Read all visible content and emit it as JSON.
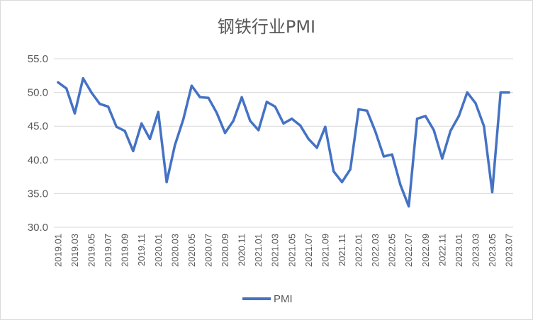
{
  "chart_data": {
    "type": "line",
    "title": "钢铁行业PMI",
    "xlabel": "",
    "ylabel": "",
    "ylim": [
      30.0,
      55.0
    ],
    "yticks": [
      "30.0",
      "35.0",
      "40.0",
      "45.0",
      "50.0",
      "55.0"
    ],
    "grid": true,
    "legend_position": "bottom",
    "x_tick_labels": [
      "2019.01",
      "2019.03",
      "2019.05",
      "2019.07",
      "2019.09",
      "2019.11",
      "2020.01",
      "2020.03",
      "2020.05",
      "2020.07",
      "2020.09",
      "2020.11",
      "2021.01",
      "2021.03",
      "2021.05",
      "2021.07",
      "2021.09",
      "2021.11",
      "2022.01",
      "2022.03",
      "2022.05",
      "2022.07",
      "2022.09",
      "2022.11",
      "2023.01",
      "2023.03",
      "2023.05",
      "2023.07"
    ],
    "x": [
      "2019.01",
      "2019.02",
      "2019.03",
      "2019.04",
      "2019.05",
      "2019.06",
      "2019.07",
      "2019.08",
      "2019.09",
      "2019.10",
      "2019.11",
      "2019.12",
      "2020.01",
      "2020.02",
      "2020.03",
      "2020.04",
      "2020.05",
      "2020.06",
      "2020.07",
      "2020.08",
      "2020.09",
      "2020.10",
      "2020.11",
      "2020.12",
      "2021.01",
      "2021.02",
      "2021.03",
      "2021.04",
      "2021.05",
      "2021.06",
      "2021.07",
      "2021.08",
      "2021.09",
      "2021.10",
      "2021.11",
      "2021.12",
      "2022.01",
      "2022.02",
      "2022.03",
      "2022.04",
      "2022.05",
      "2022.06",
      "2022.07",
      "2022.08",
      "2022.09",
      "2022.10",
      "2022.11",
      "2022.12",
      "2023.01",
      "2023.02",
      "2023.03",
      "2023.04",
      "2023.05",
      "2023.06",
      "2023.07"
    ],
    "series": [
      {
        "name": "PMI",
        "color": "#4472c4",
        "values": [
          51.5,
          50.6,
          46.9,
          52.1,
          50.0,
          48.3,
          47.9,
          44.9,
          44.3,
          41.3,
          45.4,
          43.1,
          47.1,
          36.7,
          42.2,
          46.0,
          51.0,
          49.3,
          49.2,
          47.0,
          44.0,
          45.8,
          49.3,
          45.8,
          44.4,
          48.6,
          47.9,
          45.4,
          46.1,
          45.1,
          43.1,
          41.8,
          44.9,
          38.3,
          36.7,
          38.6,
          47.5,
          47.3,
          44.2,
          40.5,
          40.8,
          36.3,
          33.1,
          46.1,
          46.5,
          44.4,
          40.2,
          44.3,
          46.5,
          50.0,
          48.4,
          45.0,
          35.2,
          50.0,
          50.0
        ]
      }
    ]
  }
}
